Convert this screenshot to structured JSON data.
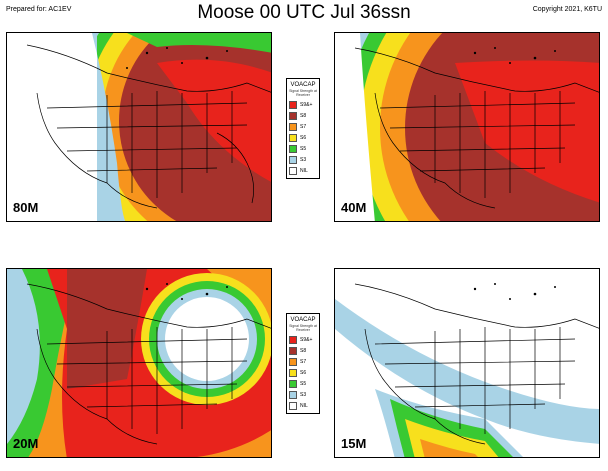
{
  "header": {
    "prepared_for": "Prepared for: AC1EV",
    "title": "Moose 00 UTC Jul 36ssn",
    "copyright": "Copyright 2021, K6TU"
  },
  "legend": {
    "title": "VOACAP",
    "subtitle": "Signal Strength at Receiver",
    "items": [
      {
        "label": "S9&+",
        "color": "#e8231c"
      },
      {
        "label": "S8",
        "color": "#a6322c"
      },
      {
        "label": "S7",
        "color": "#f7941d"
      },
      {
        "label": "S6",
        "color": "#f7e01d"
      },
      {
        "label": "S5",
        "color": "#39c932"
      },
      {
        "label": "S3",
        "color": "#a9d3e6"
      },
      {
        "label": "NIL",
        "color": "#ffffff"
      }
    ]
  },
  "panels": [
    {
      "band": "80M",
      "legend": true
    },
    {
      "band": "40M",
      "legend": false
    },
    {
      "band": "20M",
      "legend": true
    },
    {
      "band": "15M",
      "legend": false
    }
  ]
}
